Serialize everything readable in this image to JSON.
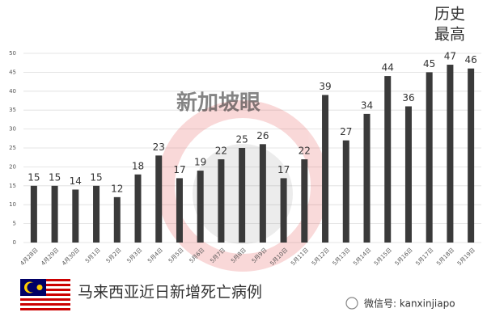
{
  "chart_data": {
    "type": "bar",
    "categories": [
      "4月28日",
      "4月29日",
      "4月30日",
      "5月1日",
      "5月2日",
      "5月3日",
      "5月4日",
      "5月5日",
      "5月6日",
      "5月7日",
      "5月8日",
      "5月9日",
      "5月10日",
      "5月11日",
      "5月12日",
      "5月13日",
      "5月14日",
      "5月15日",
      "5月16日",
      "5月17日",
      "5月18日",
      "5月19日"
    ],
    "values": [
      15,
      15,
      14,
      15,
      12,
      18,
      23,
      17,
      19,
      22,
      25,
      26,
      17,
      22,
      39,
      27,
      34,
      44,
      36,
      45,
      47,
      46
    ],
    "color": "#3a3a3a",
    "ylim": [
      0,
      50
    ],
    "yticks": [
      0,
      5,
      10,
      15,
      20,
      25,
      30,
      35,
      40,
      45,
      50
    ],
    "grid": true,
    "annotation": [
      "历史",
      "最高"
    ],
    "caption": "马来西亚近日新增死亡病例",
    "watermark": "新加坡眼",
    "footer": "微信号: kanxinjiapo"
  }
}
